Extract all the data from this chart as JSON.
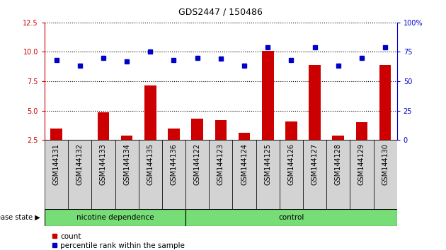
{
  "title": "GDS2447 / 150486",
  "samples": [
    "GSM144131",
    "GSM144132",
    "GSM144133",
    "GSM144134",
    "GSM144135",
    "GSM144136",
    "GSM144122",
    "GSM144123",
    "GSM144124",
    "GSM144125",
    "GSM144126",
    "GSM144127",
    "GSM144128",
    "GSM144129",
    "GSM144130"
  ],
  "count_values": [
    3.5,
    2.3,
    4.85,
    2.85,
    7.15,
    3.5,
    4.3,
    4.2,
    3.1,
    10.1,
    4.05,
    8.9,
    2.9,
    4.0,
    8.9
  ],
  "percentile_values": [
    68,
    63,
    70,
    67,
    75,
    68,
    70,
    69,
    63,
    79,
    68,
    79,
    63,
    70,
    79
  ],
  "group_boundary": 6,
  "ylim_left": [
    2.5,
    12.5
  ],
  "ylim_right": [
    0,
    100
  ],
  "yticks_left": [
    2.5,
    5.0,
    7.5,
    10.0,
    12.5
  ],
  "yticks_right": [
    0,
    25,
    50,
    75,
    100
  ],
  "bar_color": "#CC0000",
  "dot_color": "#0000CC",
  "bar_width": 0.5,
  "label_color_left": "#CC0000",
  "label_color_right": "#0000CC",
  "disease_state_label": "disease state",
  "group1_label": "nicotine dependence",
  "group2_label": "control",
  "legend_count": "count",
  "legend_percentile": "percentile rank within the sample",
  "tick_label_fontsize": 7,
  "title_fontsize": 9,
  "group_label_fontsize": 7.5,
  "legend_fontsize": 7.5,
  "gray_box_color": "#D3D3D3",
  "green_band_color": "#77DD77"
}
